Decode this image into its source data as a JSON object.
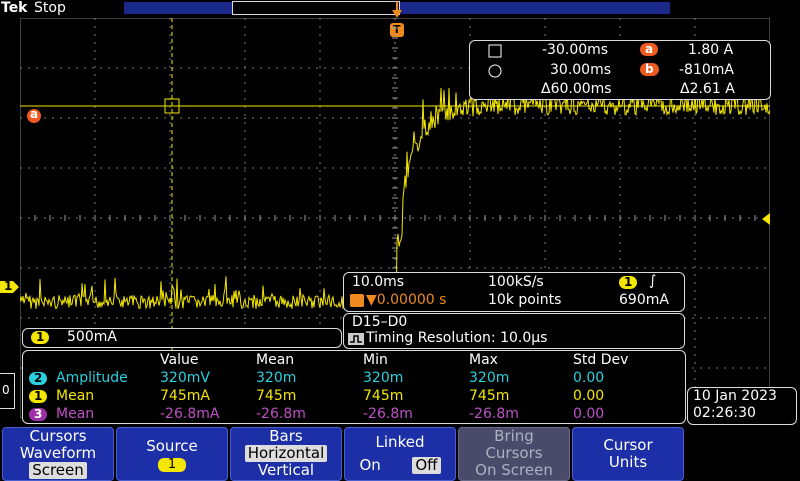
{
  "header": {
    "brand": "Tek",
    "status": "Stop"
  },
  "trigger_marker": "T",
  "cursor_a_marker": "a",
  "channel1_marker": "1",
  "cursor_readout": {
    "a_time": "-30.00ms",
    "b_time": "30.00ms",
    "delta_time": "Δ60.00ms",
    "a_label": "a",
    "b_label": "b",
    "a_value": "1.80 A",
    "b_value": "-810mA",
    "delta_value": "Δ2.61 A"
  },
  "timebase": {
    "scale": "10.0ms",
    "position": "▼0.00000 s",
    "sample_rate": "100kS/s",
    "points": "10k points",
    "trigger_channel": "1",
    "trigger_slope": "∫",
    "trigger_level": "690mA"
  },
  "channel1": {
    "badge": "1",
    "scale": "500mA"
  },
  "digital": {
    "label": "D15–D0",
    "timing": "Timing Resolution: 10.0µs"
  },
  "measurements": {
    "headers": [
      "Value",
      "Mean",
      "Min",
      "Max",
      "Std Dev"
    ],
    "rows": [
      {
        "ch": "2",
        "name": "Amplitude",
        "cells": [
          "320mV",
          "320m",
          "320m",
          "320m",
          "0.00"
        ]
      },
      {
        "ch": "1",
        "name": "Mean",
        "cells": [
          "745mA",
          "745m",
          "745m",
          "745m",
          "0.00"
        ]
      },
      {
        "ch": "3",
        "name": "Mean",
        "cells": [
          "-26.8mA",
          "-26.8m",
          "-26.8m",
          "-26.8m",
          "0.00"
        ]
      }
    ]
  },
  "datetime": {
    "date": "10 Jan 2023",
    "time": "02:26:30"
  },
  "buttons": {
    "b1": {
      "line1": "Cursors",
      "line2": "Waveform",
      "line3": "Screen"
    },
    "b2": {
      "line1": "Source",
      "value": "1"
    },
    "b3": {
      "line1": "Bars",
      "line2": "Horizontal",
      "line3": "Vertical"
    },
    "b4": {
      "line1": "Linked",
      "on": "On",
      "off": "Off"
    },
    "b5": {
      "line1": "Bring",
      "line2": "Cursors",
      "line3": "On Screen"
    },
    "b6": {
      "line1": "Cursor",
      "line2": "Units"
    }
  },
  "colors": {
    "trace": "#f3e600",
    "grid": "#8a8a8a",
    "trigger": "#f08a1e",
    "button": "#1c2fa6"
  }
}
